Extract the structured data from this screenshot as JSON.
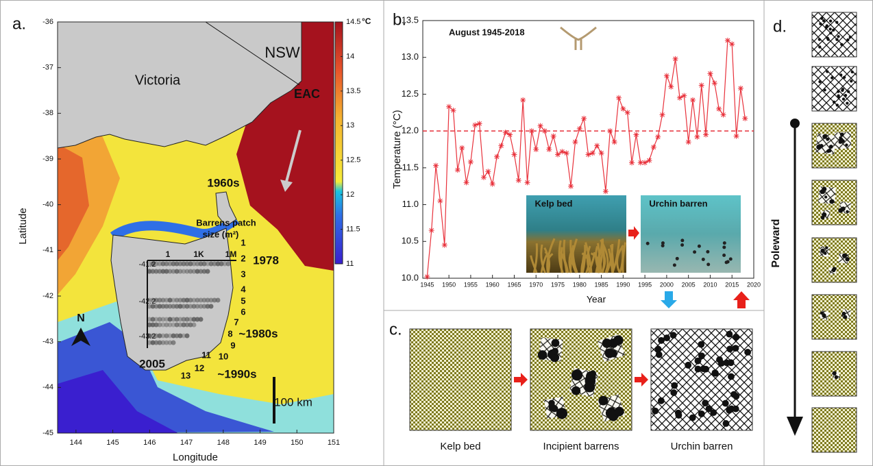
{
  "chart_data": [
    {
      "type": "map",
      "panel_label": "a.",
      "xlabel": "Longitude",
      "ylabel": "Latitude",
      "xlim": [
        143.5,
        151
      ],
      "xticks": [
        144,
        145,
        146,
        147,
        148,
        149,
        150,
        151
      ],
      "ylim": [
        -45,
        -36
      ],
      "yticks": [
        -45,
        -44,
        -43,
        -42,
        -41,
        -40,
        -39,
        -38,
        -37,
        -36
      ],
      "colorbar": {
        "lim": [
          11,
          14.5
        ],
        "ticks": [
          11,
          11.5,
          12,
          12.5,
          13,
          13.5,
          14,
          14.5
        ],
        "unit": "°C"
      },
      "annotations": [
        "NSW",
        "Victoria",
        "EAC",
        "1960s",
        "Barrens patch",
        "size (m²)",
        "1",
        "1K",
        "1M",
        "-41.2",
        "-42.2",
        "-43.2",
        "1978",
        "~1980s",
        "~1990s",
        "2005",
        "1",
        "2",
        "3",
        "4",
        "5",
        "6",
        "7",
        "8",
        "9",
        "10",
        "11",
        "12",
        "13",
        "N",
        "100 km"
      ]
    },
    {
      "type": "line",
      "panel_label": "b.",
      "title": "August 1945-2018",
      "xlabel": "Year",
      "ylabel": "Temperature (°C)",
      "x": [
        1945,
        1946,
        1947,
        1948,
        1949,
        1950,
        1951,
        1952,
        1953,
        1954,
        1955,
        1956,
        1957,
        1958,
        1959,
        1960,
        1961,
        1962,
        1963,
        1964,
        1965,
        1966,
        1967,
        1968,
        1969,
        1970,
        1971,
        1972,
        1973,
        1974,
        1975,
        1976,
        1977,
        1978,
        1979,
        1980,
        1981,
        1982,
        1983,
        1984,
        1985,
        1986,
        1987,
        1988,
        1989,
        1990,
        1991,
        1992,
        1993,
        1994,
        1995,
        1996,
        1997,
        1998,
        1999,
        2000,
        2001,
        2002,
        2003,
        2004,
        2005,
        2006,
        2007,
        2008,
        2009,
        2010,
        2011,
        2012,
        2013,
        2014,
        2015,
        2016,
        2017,
        2018
      ],
      "values": [
        10.02,
        10.65,
        11.53,
        11.05,
        10.45,
        12.33,
        12.28,
        11.47,
        11.77,
        11.3,
        11.58,
        12.08,
        12.1,
        11.37,
        11.45,
        11.28,
        11.65,
        11.8,
        11.98,
        11.95,
        11.68,
        11.33,
        12.42,
        11.3,
        12.0,
        11.75,
        12.07,
        12.0,
        11.75,
        11.93,
        11.68,
        11.72,
        11.7,
        11.25,
        11.85,
        12.03,
        12.17,
        11.68,
        11.7,
        11.8,
        11.7,
        11.18,
        12.0,
        11.85,
        12.45,
        12.3,
        12.25,
        11.57,
        11.95,
        11.57,
        11.57,
        11.6,
        11.78,
        11.92,
        12.22,
        12.75,
        12.6,
        12.98,
        12.45,
        12.48,
        11.85,
        12.42,
        11.92,
        12.62,
        11.95,
        12.78,
        12.65,
        12.3,
        12.22,
        13.23,
        13.18,
        11.93,
        12.58,
        12.17
      ],
      "color": "#e8303a",
      "reference_line": 12,
      "xlim": [
        1944,
        2020
      ],
      "xticks": [
        1945,
        1950,
        1955,
        1960,
        1965,
        1970,
        1975,
        1980,
        1985,
        1990,
        1995,
        2000,
        2005,
        2010,
        2015,
        2020
      ],
      "ylim": [
        10,
        13.5
      ],
      "yticks": [
        {
          "value": 10,
          "label": "10.0"
        },
        10.5,
        {
          "value": 11,
          "label": "11.0"
        },
        11.5,
        {
          "value": 12,
          "label": "12.0"
        },
        12.5,
        {
          "value": 13,
          "label": "13.0"
        },
        13.5
      ],
      "insets": [
        "Kelp bed",
        "Urchin barren"
      ]
    }
  ],
  "diagram": {
    "c": {
      "label": "c.",
      "stages": [
        "Kelp bed",
        "Incipient barrens",
        "Urchin barren"
      ]
    },
    "d": {
      "label": "d.",
      "axis_label": "Poleward"
    }
  }
}
